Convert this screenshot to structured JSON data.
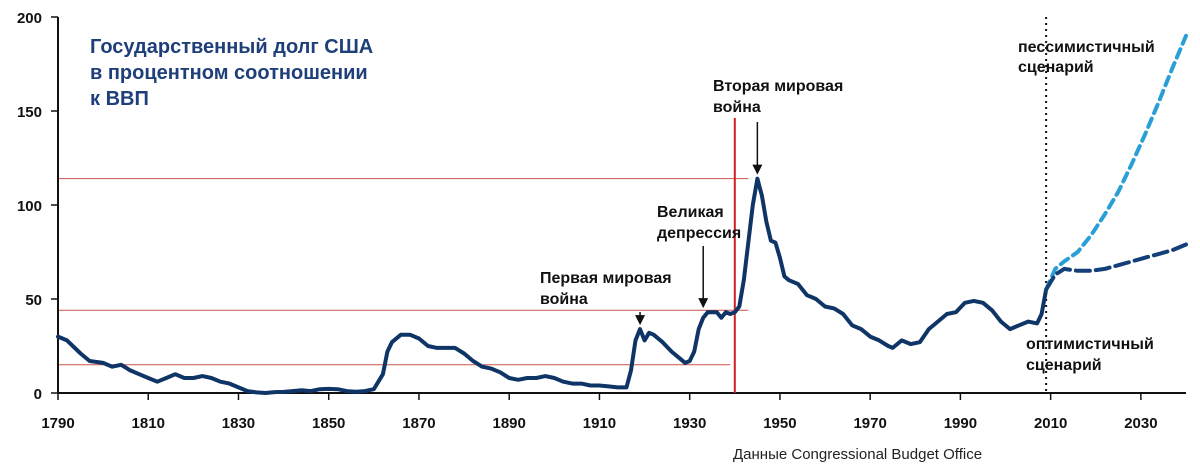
{
  "chart_data": {
    "type": "line",
    "title_lines": [
      "Государственный долг США",
      "в процентном соотношении",
      "к ВВП"
    ],
    "source": "Данные Congressional Budget Office",
    "xlim": [
      1790,
      2040
    ],
    "ylim": [
      0,
      200
    ],
    "x_ticks": [
      "1790",
      "1810",
      "1830",
      "1850",
      "1870",
      "1890",
      "1910",
      "1930",
      "1950",
      "1970",
      "1990",
      "2010",
      "2030"
    ],
    "y_ticks": [
      "0",
      "50",
      "100",
      "150",
      "200"
    ],
    "colors": {
      "main": "#0f3566",
      "pessimistic": "#2a9fd6",
      "optimistic": "#143f78",
      "title": "#1e3f7a",
      "refline": "#c9544c",
      "war_line": "#d21f26"
    },
    "series": [
      {
        "key": "historical",
        "points": [
          [
            1790,
            30
          ],
          [
            1792,
            28
          ],
          [
            1795,
            21
          ],
          [
            1797,
            17
          ],
          [
            1800,
            16
          ],
          [
            1802,
            14
          ],
          [
            1804,
            15
          ],
          [
            1806,
            12
          ],
          [
            1808,
            10
          ],
          [
            1810,
            8
          ],
          [
            1812,
            6
          ],
          [
            1814,
            8
          ],
          [
            1816,
            10
          ],
          [
            1818,
            8
          ],
          [
            1820,
            8
          ],
          [
            1822,
            9
          ],
          [
            1824,
            8
          ],
          [
            1826,
            6
          ],
          [
            1828,
            5
          ],
          [
            1830,
            3
          ],
          [
            1832,
            1
          ],
          [
            1834,
            0.3
          ],
          [
            1836,
            0
          ],
          [
            1838,
            0.5
          ],
          [
            1840,
            0.6
          ],
          [
            1842,
            1
          ],
          [
            1844,
            1.5
          ],
          [
            1846,
            1
          ],
          [
            1848,
            2
          ],
          [
            1850,
            2.2
          ],
          [
            1852,
            2
          ],
          [
            1854,
            1
          ],
          [
            1856,
            0.7
          ],
          [
            1858,
            1
          ],
          [
            1860,
            2
          ],
          [
            1862,
            10
          ],
          [
            1863,
            22
          ],
          [
            1864,
            27
          ],
          [
            1866,
            31
          ],
          [
            1868,
            31
          ],
          [
            1870,
            29
          ],
          [
            1872,
            25
          ],
          [
            1874,
            24
          ],
          [
            1876,
            24
          ],
          [
            1878,
            24
          ],
          [
            1880,
            21
          ],
          [
            1882,
            17
          ],
          [
            1884,
            14
          ],
          [
            1886,
            13
          ],
          [
            1888,
            11
          ],
          [
            1890,
            8
          ],
          [
            1892,
            7
          ],
          [
            1894,
            8
          ],
          [
            1896,
            8
          ],
          [
            1898,
            9
          ],
          [
            1900,
            8
          ],
          [
            1902,
            6
          ],
          [
            1904,
            5
          ],
          [
            1906,
            5
          ],
          [
            1908,
            4
          ],
          [
            1910,
            4
          ],
          [
            1912,
            3.5
          ],
          [
            1914,
            3
          ],
          [
            1916,
            3
          ],
          [
            1917,
            12
          ],
          [
            1918,
            28
          ],
          [
            1919,
            34
          ],
          [
            1920,
            28
          ],
          [
            1921,
            32
          ],
          [
            1922,
            31
          ],
          [
            1924,
            27
          ],
          [
            1926,
            22
          ],
          [
            1928,
            18
          ],
          [
            1929,
            16
          ],
          [
            1930,
            17
          ],
          [
            1931,
            22
          ],
          [
            1932,
            34
          ],
          [
            1933,
            40
          ],
          [
            1934,
            43
          ],
          [
            1936,
            43
          ],
          [
            1937,
            40
          ],
          [
            1938,
            43
          ],
          [
            1939,
            42
          ],
          [
            1940,
            43
          ],
          [
            1941,
            46
          ],
          [
            1942,
            60
          ],
          [
            1943,
            80
          ],
          [
            1944,
            100
          ],
          [
            1945,
            114
          ],
          [
            1946,
            105
          ],
          [
            1947,
            91
          ],
          [
            1948,
            81
          ],
          [
            1949,
            80
          ],
          [
            1950,
            72
          ],
          [
            1951,
            62
          ],
          [
            1952,
            60
          ],
          [
            1954,
            58
          ],
          [
            1956,
            52
          ],
          [
            1958,
            50
          ],
          [
            1960,
            46
          ],
          [
            1962,
            45
          ],
          [
            1964,
            42
          ],
          [
            1966,
            36
          ],
          [
            1968,
            34
          ],
          [
            1970,
            30
          ],
          [
            1972,
            28
          ],
          [
            1974,
            25
          ],
          [
            1975,
            24
          ],
          [
            1977,
            28
          ],
          [
            1979,
            26
          ],
          [
            1981,
            27
          ],
          [
            1983,
            34
          ],
          [
            1985,
            38
          ],
          [
            1987,
            42
          ],
          [
            1989,
            43
          ],
          [
            1991,
            48
          ],
          [
            1993,
            49
          ],
          [
            1995,
            48
          ],
          [
            1997,
            44
          ],
          [
            1999,
            38
          ],
          [
            2001,
            34
          ],
          [
            2003,
            36
          ],
          [
            2005,
            38
          ],
          [
            2007,
            37
          ],
          [
            2008,
            42
          ],
          [
            2009,
            55
          ]
        ]
      },
      {
        "key": "pessimistic",
        "label_lines": [
          "пессимистичный",
          "сценарий"
        ],
        "points": [
          [
            2009,
            55
          ],
          [
            2011,
            66
          ],
          [
            2013,
            70
          ],
          [
            2016,
            75
          ],
          [
            2019,
            84
          ],
          [
            2022,
            95
          ],
          [
            2025,
            107
          ],
          [
            2028,
            122
          ],
          [
            2031,
            138
          ],
          [
            2034,
            155
          ],
          [
            2037,
            173
          ],
          [
            2040,
            190
          ]
        ]
      },
      {
        "key": "optimistic",
        "label_lines": [
          "оптимистичный",
          "сценарий"
        ],
        "points": [
          [
            2009,
            55
          ],
          [
            2011,
            63
          ],
          [
            2013,
            66
          ],
          [
            2016,
            65
          ],
          [
            2019,
            65
          ],
          [
            2022,
            66
          ],
          [
            2025,
            68
          ],
          [
            2028,
            70
          ],
          [
            2031,
            72
          ],
          [
            2034,
            74
          ],
          [
            2037,
            76
          ],
          [
            2040,
            79
          ]
        ]
      }
    ],
    "annotations": [
      {
        "key": "ww1",
        "lines": [
          "Первая мировая",
          "война"
        ],
        "x": 1919,
        "y": 34
      },
      {
        "key": "depression",
        "lines": [
          "Великая",
          "депрессия"
        ],
        "x": 1933,
        "y": 43
      },
      {
        "key": "ww2",
        "lines": [
          "Вторая мировая",
          "война"
        ],
        "x": 1945,
        "y": 114
      }
    ],
    "reference_lines_y": [
      114,
      44,
      15
    ],
    "war_line_x": 1940,
    "forecast_divider_x": 2009
  }
}
